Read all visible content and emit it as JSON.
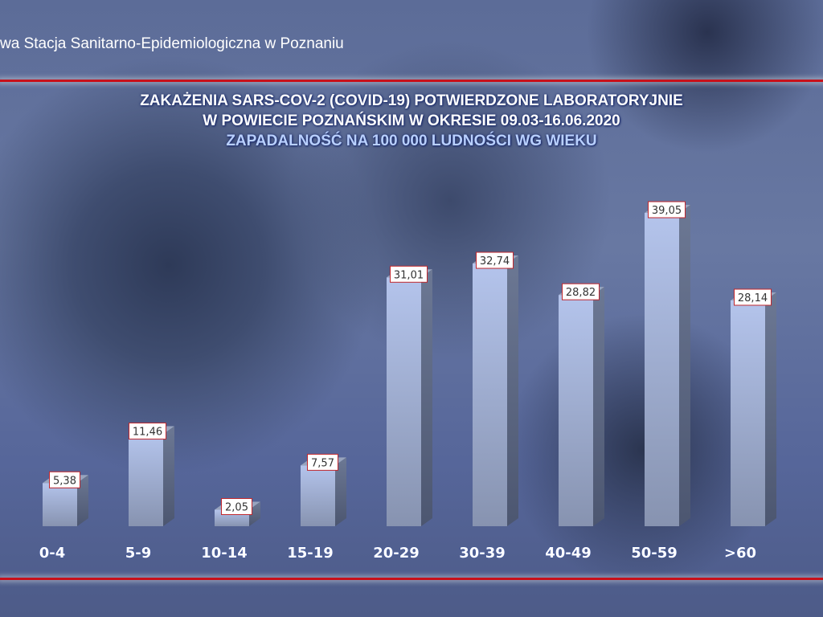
{
  "header": {
    "organization": "wa Stacja Sanitarno-Epidemiologiczna w Poznaniu"
  },
  "colors": {
    "accent_line": "#c8101a",
    "bar_front": "#a8b8e0",
    "title": "#ffffff",
    "subtitle": "#b9d0ff"
  },
  "chart_data": {
    "type": "bar",
    "title": "ZAKAŻENIA SARS-COV-2 (COVID-19) POTWIERDZONE LABORATORYJNIE",
    "title_line2": "W POWIECIE POZNAŃSKIM W OKRESIE 09.03-16.06.2020",
    "subtitle": "ZAPADALNOŚĆ NA 100 000 LUDNOŚCI WG WIEKU",
    "categories": [
      "0-4",
      "5-9",
      "10-14",
      "15-19",
      "20-29",
      "30-39",
      "40-49",
      "50-59",
      ">60"
    ],
    "values": [
      5.38,
      11.46,
      2.05,
      7.57,
      31.01,
      32.74,
      28.82,
      39.05,
      28.14
    ],
    "data_labels": [
      "5,38",
      "11,46",
      "2,05",
      "7,57",
      "31,01",
      "32,74",
      "28,82",
      "39,05",
      "28,14"
    ],
    "ylim": [
      0,
      40
    ],
    "grid": false,
    "style": "3d-column"
  }
}
